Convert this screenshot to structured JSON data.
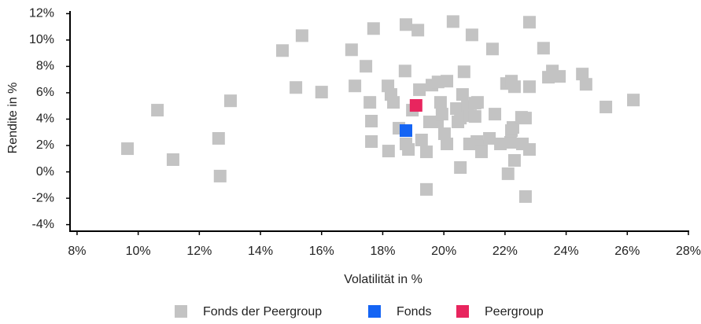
{
  "chart_data": {
    "type": "scatter",
    "x_label": "Volatilität in %",
    "y_label": "Rendite in %",
    "xlim": [
      7.77,
      28
    ],
    "ylim": [
      -4.5,
      12.2
    ],
    "xticks": [
      {
        "value": 8,
        "label": "8%"
      },
      {
        "value": 10,
        "label": "10%"
      },
      {
        "value": 12,
        "label": "12%"
      },
      {
        "value": 14,
        "label": "14%"
      },
      {
        "value": 16,
        "label": "16%"
      },
      {
        "value": 18,
        "label": "18%"
      },
      {
        "value": 20,
        "label": "20%"
      },
      {
        "value": 22,
        "label": "22%"
      },
      {
        "value": 24,
        "label": "24%"
      },
      {
        "value": 26,
        "label": "26%"
      },
      {
        "value": 28,
        "label": "28%"
      }
    ],
    "yticks": [
      {
        "value": -4,
        "label": "-4%"
      },
      {
        "value": -2,
        "label": "-2%"
      },
      {
        "value": 0,
        "label": "0%"
      },
      {
        "value": 2,
        "label": "2%"
      },
      {
        "value": 4,
        "label": "4%"
      },
      {
        "value": 6,
        "label": "6%"
      },
      {
        "value": 8,
        "label": "8%"
      },
      {
        "value": 10,
        "label": "10%"
      },
      {
        "value": 12,
        "label": "12%"
      }
    ],
    "series": [
      {
        "name": "Fonds der Peergroup",
        "color": "#c3c3c3",
        "x": [
          9.65,
          10.63,
          11.14,
          12.63,
          12.68,
          13.02,
          14.72,
          15.36,
          15.16,
          16.0,
          16.98,
          17.09,
          17.45,
          17.7,
          17.58,
          17.63,
          17.63,
          18.17,
          18.27,
          18.35,
          18.19,
          18.53,
          18.76,
          18.73,
          19.15,
          18.76,
          18.84,
          19.2,
          19.43,
          19.43,
          19.27,
          19.61,
          19.81,
          20.1,
          19.53,
          19.79,
          19.89,
          19.94,
          20.02,
          20.1,
          20.3,
          20.41,
          20.46,
          20.54,
          20.54,
          20.61,
          20.66,
          20.77,
          20.87,
          20.92,
          21.02,
          21.02,
          21.08,
          20.84,
          21.23,
          21.23,
          21.1,
          21.49,
          21.59,
          21.67,
          21.85,
          22.05,
          22.1,
          22.18,
          22.21,
          22.21,
          22.31,
          22.26,
          22.31,
          22.54,
          22.67,
          22.57,
          22.67,
          22.8,
          22.8,
          22.8,
          23.26,
          23.42,
          23.55,
          23.78,
          24.53,
          24.65,
          25.3,
          26.2,
          18.97
        ],
        "values": [
          1.76,
          4.68,
          0.93,
          2.54,
          -0.32,
          5.39,
          9.2,
          10.33,
          6.4,
          6.05,
          9.26,
          6.52,
          8.01,
          10.87,
          5.27,
          3.85,
          2.3,
          6.52,
          5.87,
          5.27,
          1.58,
          3.31,
          11.17,
          7.65,
          10.75,
          2.12,
          1.7,
          6.23,
          1.52,
          -1.33,
          2.42,
          6.58,
          6.82,
          6.88,
          3.79,
          3.79,
          5.27,
          4.38,
          2.89,
          2.12,
          11.4,
          4.8,
          3.79,
          4.08,
          0.33,
          5.87,
          7.59,
          4.98,
          4.26,
          10.39,
          5.21,
          4.2,
          2.3,
          2.12,
          2.0,
          1.52,
          5.27,
          2.54,
          9.32,
          4.38,
          2.12,
          6.7,
          -0.14,
          2.24,
          6.88,
          3.13,
          6.46,
          3.37,
          0.87,
          4.14,
          4.08,
          2.12,
          -1.87,
          11.35,
          6.46,
          1.7,
          9.38,
          7.18,
          7.65,
          7.24,
          7.42,
          6.64,
          4.92,
          5.45,
          4.68
        ]
      },
      {
        "name": "Fonds",
        "color": "#1464f4",
        "x": [
          18.76
        ],
        "values": [
          3.13
        ]
      },
      {
        "name": "Peergroup",
        "color": "#e8255e",
        "x": [
          19.09
        ],
        "values": [
          5.04
        ]
      }
    ]
  }
}
